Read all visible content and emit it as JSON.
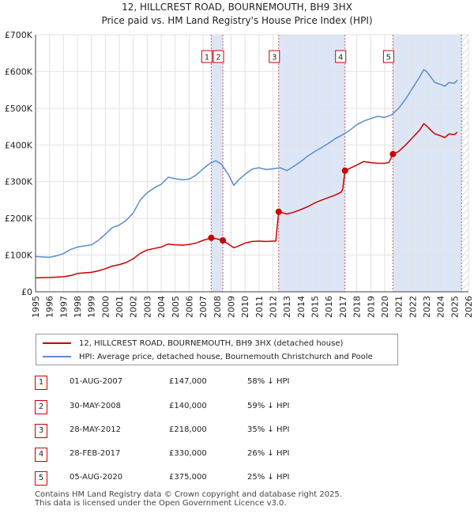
{
  "title_line1": "12, HILLCREST ROAD, BOURNEMOUTH, BH9 3HX",
  "title_line2": "Price paid vs. HM Land Registry's House Price Index (HPI)",
  "chart_data": {
    "type": "line",
    "x_range": [
      1995,
      2026
    ],
    "y_range": [
      0,
      700000
    ],
    "y_ticks": [
      0,
      100000,
      200000,
      300000,
      400000,
      500000,
      600000,
      700000
    ],
    "y_tick_labels": [
      "£0",
      "£100K",
      "£200K",
      "£300K",
      "£400K",
      "£500K",
      "£600K",
      "£700K"
    ],
    "x_ticks": [
      1995,
      1996,
      1997,
      1998,
      1999,
      2000,
      2001,
      2002,
      2003,
      2004,
      2005,
      2006,
      2007,
      2008,
      2009,
      2010,
      2011,
      2012,
      2013,
      2014,
      2015,
      2016,
      2017,
      2018,
      2019,
      2020,
      2021,
      2022,
      2023,
      2024,
      2025,
      2026
    ],
    "x_tick_labels": [
      "1995",
      "1996",
      "1997",
      "1998",
      "1999",
      "2000",
      "2001",
      "2002",
      "2003",
      "2004",
      "2005",
      "2006",
      "2007",
      "2008",
      "2009",
      "2010",
      "2011",
      "2012",
      "2013",
      "2014",
      "2015",
      "2016",
      "2017",
      "2018",
      "2019",
      "2020",
      "2021",
      "2022",
      "2023",
      "2024",
      "2025",
      "2026"
    ],
    "grid": true,
    "colors": {
      "property": "#cc0000",
      "hpi": "#5b8ccf",
      "shade": "#dce6f7",
      "sale_line": "#d9534f",
      "future_hatch": "#bbbbbb"
    },
    "series": [
      {
        "name": "12, HILLCREST ROAD, BOURNEMOUTH, BH9 3HX (detached house)",
        "points": [
          [
            1995.0,
            38000
          ],
          [
            1996.0,
            39000
          ],
          [
            1997.0,
            41000
          ],
          [
            1997.6,
            45000
          ],
          [
            1998.0,
            50000
          ],
          [
            1999.0,
            53000
          ],
          [
            1999.5,
            57000
          ],
          [
            2000.0,
            63000
          ],
          [
            2000.5,
            70000
          ],
          [
            2001.0,
            74000
          ],
          [
            2001.5,
            80000
          ],
          [
            2002.0,
            90000
          ],
          [
            2002.5,
            105000
          ],
          [
            2003.0,
            114000
          ],
          [
            2003.5,
            118000
          ],
          [
            2004.0,
            122000
          ],
          [
            2004.5,
            130000
          ],
          [
            2005.0,
            128000
          ],
          [
            2005.5,
            127000
          ],
          [
            2006.0,
            129000
          ],
          [
            2006.5,
            133000
          ],
          [
            2007.0,
            140000
          ],
          [
            2007.58,
            147000
          ],
          [
            2007.9,
            145000
          ],
          [
            2008.41,
            140000
          ],
          [
            2008.8,
            130000
          ],
          [
            2009.2,
            120000
          ],
          [
            2009.5,
            124000
          ],
          [
            2010.0,
            133000
          ],
          [
            2010.5,
            137000
          ],
          [
            2011.0,
            138000
          ],
          [
            2011.5,
            137000
          ],
          [
            2012.0,
            138000
          ],
          [
            2012.2,
            138000
          ],
          [
            2012.41,
            218000
          ],
          [
            2012.8,
            214000
          ],
          [
            2013.0,
            212000
          ],
          [
            2013.5,
            217000
          ],
          [
            2014.0,
            224000
          ],
          [
            2014.5,
            232000
          ],
          [
            2015.0,
            242000
          ],
          [
            2015.5,
            250000
          ],
          [
            2016.0,
            257000
          ],
          [
            2016.5,
            264000
          ],
          [
            2016.9,
            272000
          ],
          [
            2017.0,
            280000
          ],
          [
            2017.16,
            330000
          ],
          [
            2017.6,
            338000
          ],
          [
            2018.0,
            345000
          ],
          [
            2018.5,
            355000
          ],
          [
            2019.0,
            352000
          ],
          [
            2019.5,
            350000
          ],
          [
            2020.0,
            350000
          ],
          [
            2020.3,
            352000
          ],
          [
            2020.59,
            375000
          ],
          [
            2021.0,
            382000
          ],
          [
            2021.5,
            400000
          ],
          [
            2022.0,
            420000
          ],
          [
            2022.5,
            440000
          ],
          [
            2022.8,
            458000
          ],
          [
            2023.0,
            452000
          ],
          [
            2023.3,
            440000
          ],
          [
            2023.6,
            430000
          ],
          [
            2024.0,
            425000
          ],
          [
            2024.3,
            420000
          ],
          [
            2024.6,
            430000
          ],
          [
            2025.0,
            428000
          ],
          [
            2025.2,
            435000
          ]
        ]
      },
      {
        "name": "HPI: Average price, detached house, Bournemouth Christchurch and Poole",
        "points": [
          [
            1995.0,
            96000
          ],
          [
            1996.0,
            94000
          ],
          [
            1996.5,
            98000
          ],
          [
            1997.0,
            104000
          ],
          [
            1997.5,
            115000
          ],
          [
            1998.0,
            122000
          ],
          [
            1999.0,
            128000
          ],
          [
            1999.5,
            140000
          ],
          [
            2000.0,
            157000
          ],
          [
            2000.5,
            175000
          ],
          [
            2001.0,
            182000
          ],
          [
            2001.5,
            195000
          ],
          [
            2002.0,
            215000
          ],
          [
            2002.5,
            250000
          ],
          [
            2003.0,
            270000
          ],
          [
            2003.5,
            283000
          ],
          [
            2004.0,
            293000
          ],
          [
            2004.5,
            312000
          ],
          [
            2005.0,
            308000
          ],
          [
            2005.5,
            305000
          ],
          [
            2006.0,
            307000
          ],
          [
            2006.5,
            318000
          ],
          [
            2007.0,
            335000
          ],
          [
            2007.5,
            350000
          ],
          [
            2007.9,
            357000
          ],
          [
            2008.3,
            348000
          ],
          [
            2008.8,
            320000
          ],
          [
            2009.2,
            290000
          ],
          [
            2009.5,
            303000
          ],
          [
            2010.0,
            320000
          ],
          [
            2010.5,
            334000
          ],
          [
            2011.0,
            338000
          ],
          [
            2011.5,
            333000
          ],
          [
            2012.0,
            335000
          ],
          [
            2012.5,
            338000
          ],
          [
            2013.0,
            330000
          ],
          [
            2013.5,
            342000
          ],
          [
            2014.0,
            355000
          ],
          [
            2014.5,
            370000
          ],
          [
            2015.0,
            382000
          ],
          [
            2015.5,
            393000
          ],
          [
            2016.0,
            405000
          ],
          [
            2016.5,
            418000
          ],
          [
            2017.0,
            428000
          ],
          [
            2017.5,
            440000
          ],
          [
            2018.0,
            455000
          ],
          [
            2018.5,
            465000
          ],
          [
            2019.0,
            472000
          ],
          [
            2019.5,
            478000
          ],
          [
            2020.0,
            475000
          ],
          [
            2020.5,
            482000
          ],
          [
            2021.0,
            500000
          ],
          [
            2021.5,
            525000
          ],
          [
            2022.0,
            555000
          ],
          [
            2022.5,
            585000
          ],
          [
            2022.8,
            605000
          ],
          [
            2023.0,
            600000
          ],
          [
            2023.3,
            585000
          ],
          [
            2023.6,
            570000
          ],
          [
            2024.0,
            565000
          ],
          [
            2024.3,
            560000
          ],
          [
            2024.6,
            570000
          ],
          [
            2025.0,
            568000
          ],
          [
            2025.2,
            577000
          ]
        ]
      }
    ],
    "sales": [
      {
        "label": "1",
        "year": 2007.58,
        "price": 147000
      },
      {
        "label": "2",
        "year": 2008.41,
        "price": 140000
      },
      {
        "label": "3",
        "year": 2012.41,
        "price": 218000
      },
      {
        "label": "4",
        "year": 2017.16,
        "price": 330000
      },
      {
        "label": "5",
        "year": 2020.59,
        "price": 375000
      }
    ],
    "shaded_ranges": [
      [
        2007.58,
        2008.41
      ],
      [
        2012.41,
        2017.16
      ],
      [
        2020.59,
        2025.5
      ]
    ],
    "future_from": 2025.5
  },
  "legend": {
    "property_label": "12, HILLCREST ROAD, BOURNEMOUTH, BH9 3HX (detached house)",
    "hpi_label": "HPI: Average price, detached house, Bournemouth Christchurch and Poole"
  },
  "transactions": [
    {
      "num": "1",
      "date": "01-AUG-2007",
      "price": "£147,000",
      "hpi": "58% ↓ HPI"
    },
    {
      "num": "2",
      "date": "30-MAY-2008",
      "price": "£140,000",
      "hpi": "59% ↓ HPI"
    },
    {
      "num": "3",
      "date": "28-MAY-2012",
      "price": "£218,000",
      "hpi": "35% ↓ HPI"
    },
    {
      "num": "4",
      "date": "28-FEB-2017",
      "price": "£330,000",
      "hpi": "26% ↓ HPI"
    },
    {
      "num": "5",
      "date": "05-AUG-2020",
      "price": "£375,000",
      "hpi": "25% ↓ HPI"
    }
  ],
  "footer_line1": "Contains HM Land Registry data © Crown copyright and database right 2025.",
  "footer_line2": "This data is licensed under the Open Government Licence v3.0."
}
